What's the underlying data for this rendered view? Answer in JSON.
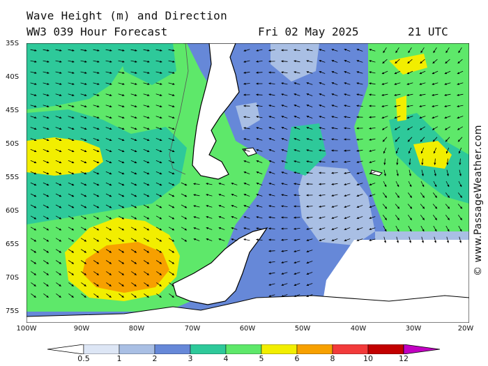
{
  "header": {
    "title": "Wave Height (m) and Direction",
    "model": "WW3 039 Hour Forecast",
    "date": "Fri 02 May 2025",
    "time": "21 UTC"
  },
  "credit": "© www.PassageWeather.com",
  "lat_labels": [
    "35S",
    "40S",
    "45S",
    "50S",
    "55S",
    "60S",
    "65S",
    "70S",
    "75S"
  ],
  "lon_labels": [
    "100W",
    "90W",
    "80W",
    "70W",
    "60W",
    "50W",
    "40W",
    "30W",
    "20W"
  ],
  "legend": {
    "labels": [
      "0.5",
      "1",
      "2",
      "3",
      "4",
      "5",
      "6",
      "8",
      "10",
      "12"
    ],
    "colors": [
      "#ffffff",
      "#dde6f5",
      "#a9bfe4",
      "#6688d8",
      "#2ec99a",
      "#5ee86a",
      "#f2ee00",
      "#f7a000",
      "#f23a3a",
      "#c20000",
      "#c200c2"
    ]
  }
}
